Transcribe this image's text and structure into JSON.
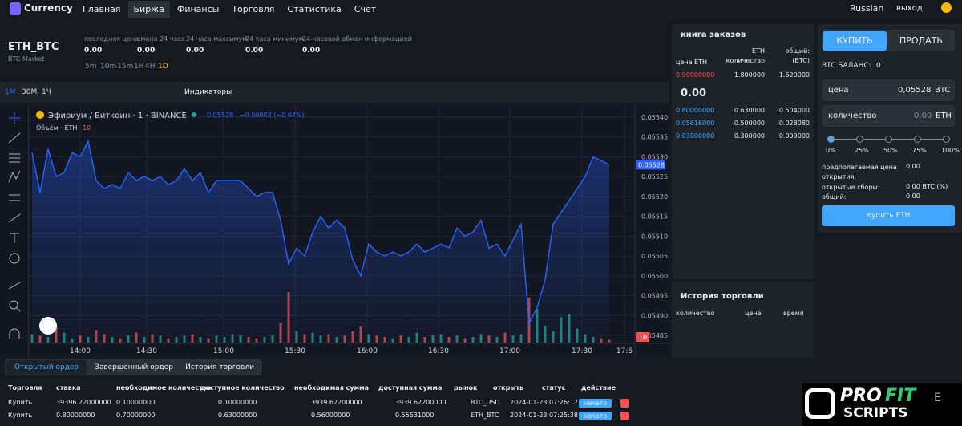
{
  "nav": {
    "logo": "Currency",
    "items": [
      "Главная",
      "Биржа",
      "Финансы",
      "Торговля",
      "Статистика",
      "Счет"
    ],
    "language": "Russian",
    "logout": "выход"
  },
  "market": {
    "pair": "ETH_BTC",
    "subtitle": "BTC Market",
    "stats": [
      {
        "label": "последняя цена",
        "value": "0.00"
      },
      {
        "label": "смена 24 часа",
        "value": "0.00"
      },
      {
        "label": "24 часа максимум",
        "value": "0.00"
      },
      {
        "label": "24 часа минимум",
        "value": "0.00"
      },
      {
        "label": "24-часовой обмен информацией",
        "value": "0.00"
      }
    ],
    "intervals": [
      "5m",
      "10m",
      "15m",
      "1H",
      "4H",
      "1D"
    ]
  },
  "toolbar": {
    "timeframes": [
      "1M",
      "30M",
      "1Ч"
    ],
    "indicators": "Индикаторы"
  },
  "chart": {
    "type": "line",
    "title": "Эфириум / Биткоин · 1 · BINANCE",
    "change": "−0.00002 (−0.04%)",
    "volume_label": "Объём · ETH",
    "color": "#2962ff",
    "up_color": "#26a69a",
    "down_color": "#ef5350",
    "values": [
      0.05531,
      0.05521,
      0.05532,
      0.05525,
      0.05526,
      0.05531,
      0.0553,
      0.05534,
      0.05524,
      0.05522,
      0.05523,
      0.05522,
      0.05526,
      0.05524,
      0.05525,
      0.05524,
      0.05525,
      0.05523,
      0.05524,
      0.05527,
      0.05524,
      0.05526,
      0.05521,
      0.05524,
      0.05524,
      0.05524,
      0.05524,
      0.05522,
      0.0552,
      0.05521,
      0.05521,
      0.05514,
      0.05503,
      0.05507,
      0.05505,
      0.05511,
      0.05515,
      0.05512,
      0.05514,
      0.05512,
      0.05504,
      0.055,
      0.05508,
      0.05506,
      0.05505,
      0.05506,
      0.05505,
      0.05506,
      0.05508,
      0.05506,
      0.05507,
      0.05508,
      0.05507,
      0.05512,
      0.0551,
      0.05511,
      0.05514,
      0.05507,
      0.05508,
      0.05505,
      0.05509,
      0.05513,
      0.05488,
      0.05492,
      0.05499,
      0.05513,
      0.05516,
      0.05519,
      0.05522,
      0.05525,
      0.0553,
      0.05529,
      0.05528
    ],
    "volumes": [
      30,
      25,
      20,
      60,
      35,
      15,
      25,
      20,
      45,
      30,
      20,
      15,
      25,
      35,
      20,
      30,
      25,
      15,
      20,
      25,
      30,
      20,
      15,
      25,
      20,
      30,
      25,
      20,
      15,
      20,
      25,
      70,
      180,
      40,
      30,
      35,
      25,
      30,
      20,
      25,
      40,
      60,
      30,
      25,
      20,
      15,
      25,
      20,
      35,
      20,
      25,
      30,
      20,
      25,
      15,
      20,
      30,
      25,
      20,
      35,
      25,
      30,
      160,
      120,
      60,
      40,
      90,
      100,
      50,
      30,
      20,
      15,
      10
    ],
    "volume_ylim": [
      0,
      200
    ],
    "xlim": [
      0,
      72
    ],
    "xticks": [
      {
        "value": 6,
        "label": "14:00"
      },
      {
        "value": 14.3,
        "label": "14:30"
      },
      {
        "value": 23.9,
        "label": "15:00"
      },
      {
        "value": 32.8,
        "label": "15:30"
      },
      {
        "value": 41.8,
        "label": "16:00"
      },
      {
        "value": 50.7,
        "label": "16:30"
      },
      {
        "value": 59.6,
        "label": "17:00"
      },
      {
        "value": 68.6,
        "label": "17:30"
      },
      {
        "value": 73.9,
        "label": "17:5"
      }
    ],
    "ylim": [
      0.05485,
      0.0554
    ],
    "yticks": [
      {
        "value": 0.05485,
        "label": "0.05485"
      },
      {
        "value": 0.0549,
        "label": "0.05490"
      },
      {
        "value": 0.05495,
        "label": "0.05495"
      },
      {
        "value": 0.055,
        "label": "0.05500"
      },
      {
        "value": 0.05505,
        "label": "0.05505"
      },
      {
        "value": 0.0551,
        "label": "0.05510"
      },
      {
        "value": 0.05515,
        "label": "0.05515"
      },
      {
        "value": 0.0552,
        "label": "0.05520"
      },
      {
        "value": 0.05525,
        "label": "0.05525"
      },
      {
        "value": 0.0553,
        "label": "0.05530"
      },
      {
        "value": 0.05535,
        "label": "0.05535"
      },
      {
        "value": 0.0554,
        "label": "0.05540"
      }
    ],
    "grid": true
  },
  "order_book": {
    "title": "книга заказов",
    "columns": [
      "цена ETH",
      "ETH количество",
      "общий: (BTC)"
    ],
    "asks": [
      [
        "0.90000000",
        "1.800000",
        "1.620000"
      ]
    ],
    "mid": "0.00",
    "bids": [
      [
        "0.80000000",
        "0.630000",
        "0.504000"
      ],
      [
        "0.05616000",
        "0.500000",
        "0.028080"
      ],
      [
        "0.03000000",
        "0.300000",
        "0.009000"
      ]
    ]
  },
  "trade_history": {
    "title": "История торговли",
    "columns": [
      "количество",
      "цена",
      "время"
    ]
  },
  "trade_form": {
    "tabs": [
      "КУПИТЬ",
      "ПРОДАТЬ"
    ],
    "balance_label": "BTC БАЛАНС:",
    "balance": "0",
    "price_label": "цена",
    "price": "0,05528",
    "price_unit": "BTC",
    "amount_label": "количество",
    "amount": "0.00",
    "amount_unit": "ETH",
    "percents": [
      "0%",
      "25%",
      "50%",
      "75%",
      "100%"
    ],
    "summary": [
      {
        "label": "предполагаемая цена открытия:",
        "value": "0.00"
      },
      {
        "label": "открытые сборы:",
        "value": "0.00 BTC (%)"
      },
      {
        "label": "общий:",
        "value": "0.00"
      }
    ],
    "button": "Купить ETH"
  },
  "orders": {
    "tabs": [
      "Открытый ордер",
      "Завершенный ордер",
      "История торговли"
    ],
    "columns": [
      "Торговля",
      "ставка",
      "необходимое количество",
      "доступное количество",
      "необходимая сумма",
      "доступная сумма",
      "рынок",
      "открыть",
      "статус",
      "действие"
    ],
    "rows": [
      [
        "Купить",
        "39396.22000000",
        "0.10000000",
        "0.10000000",
        "3939.62200000",
        "3939.62200000",
        "BTC_USD",
        "2024-01-23 07:26:17",
        "начато"
      ],
      [
        "Купить",
        "0.80000000",
        "0.70000000",
        "0.63000000",
        "0.56000000",
        "0.55531000",
        "ETH_BTC",
        "2024-01-23 07:25:38",
        "начато"
      ]
    ]
  },
  "watermark": {
    "brand": [
      "PRO",
      "FIT"
    ],
    "sub": "SCRIPTS",
    "letter": "E"
  }
}
